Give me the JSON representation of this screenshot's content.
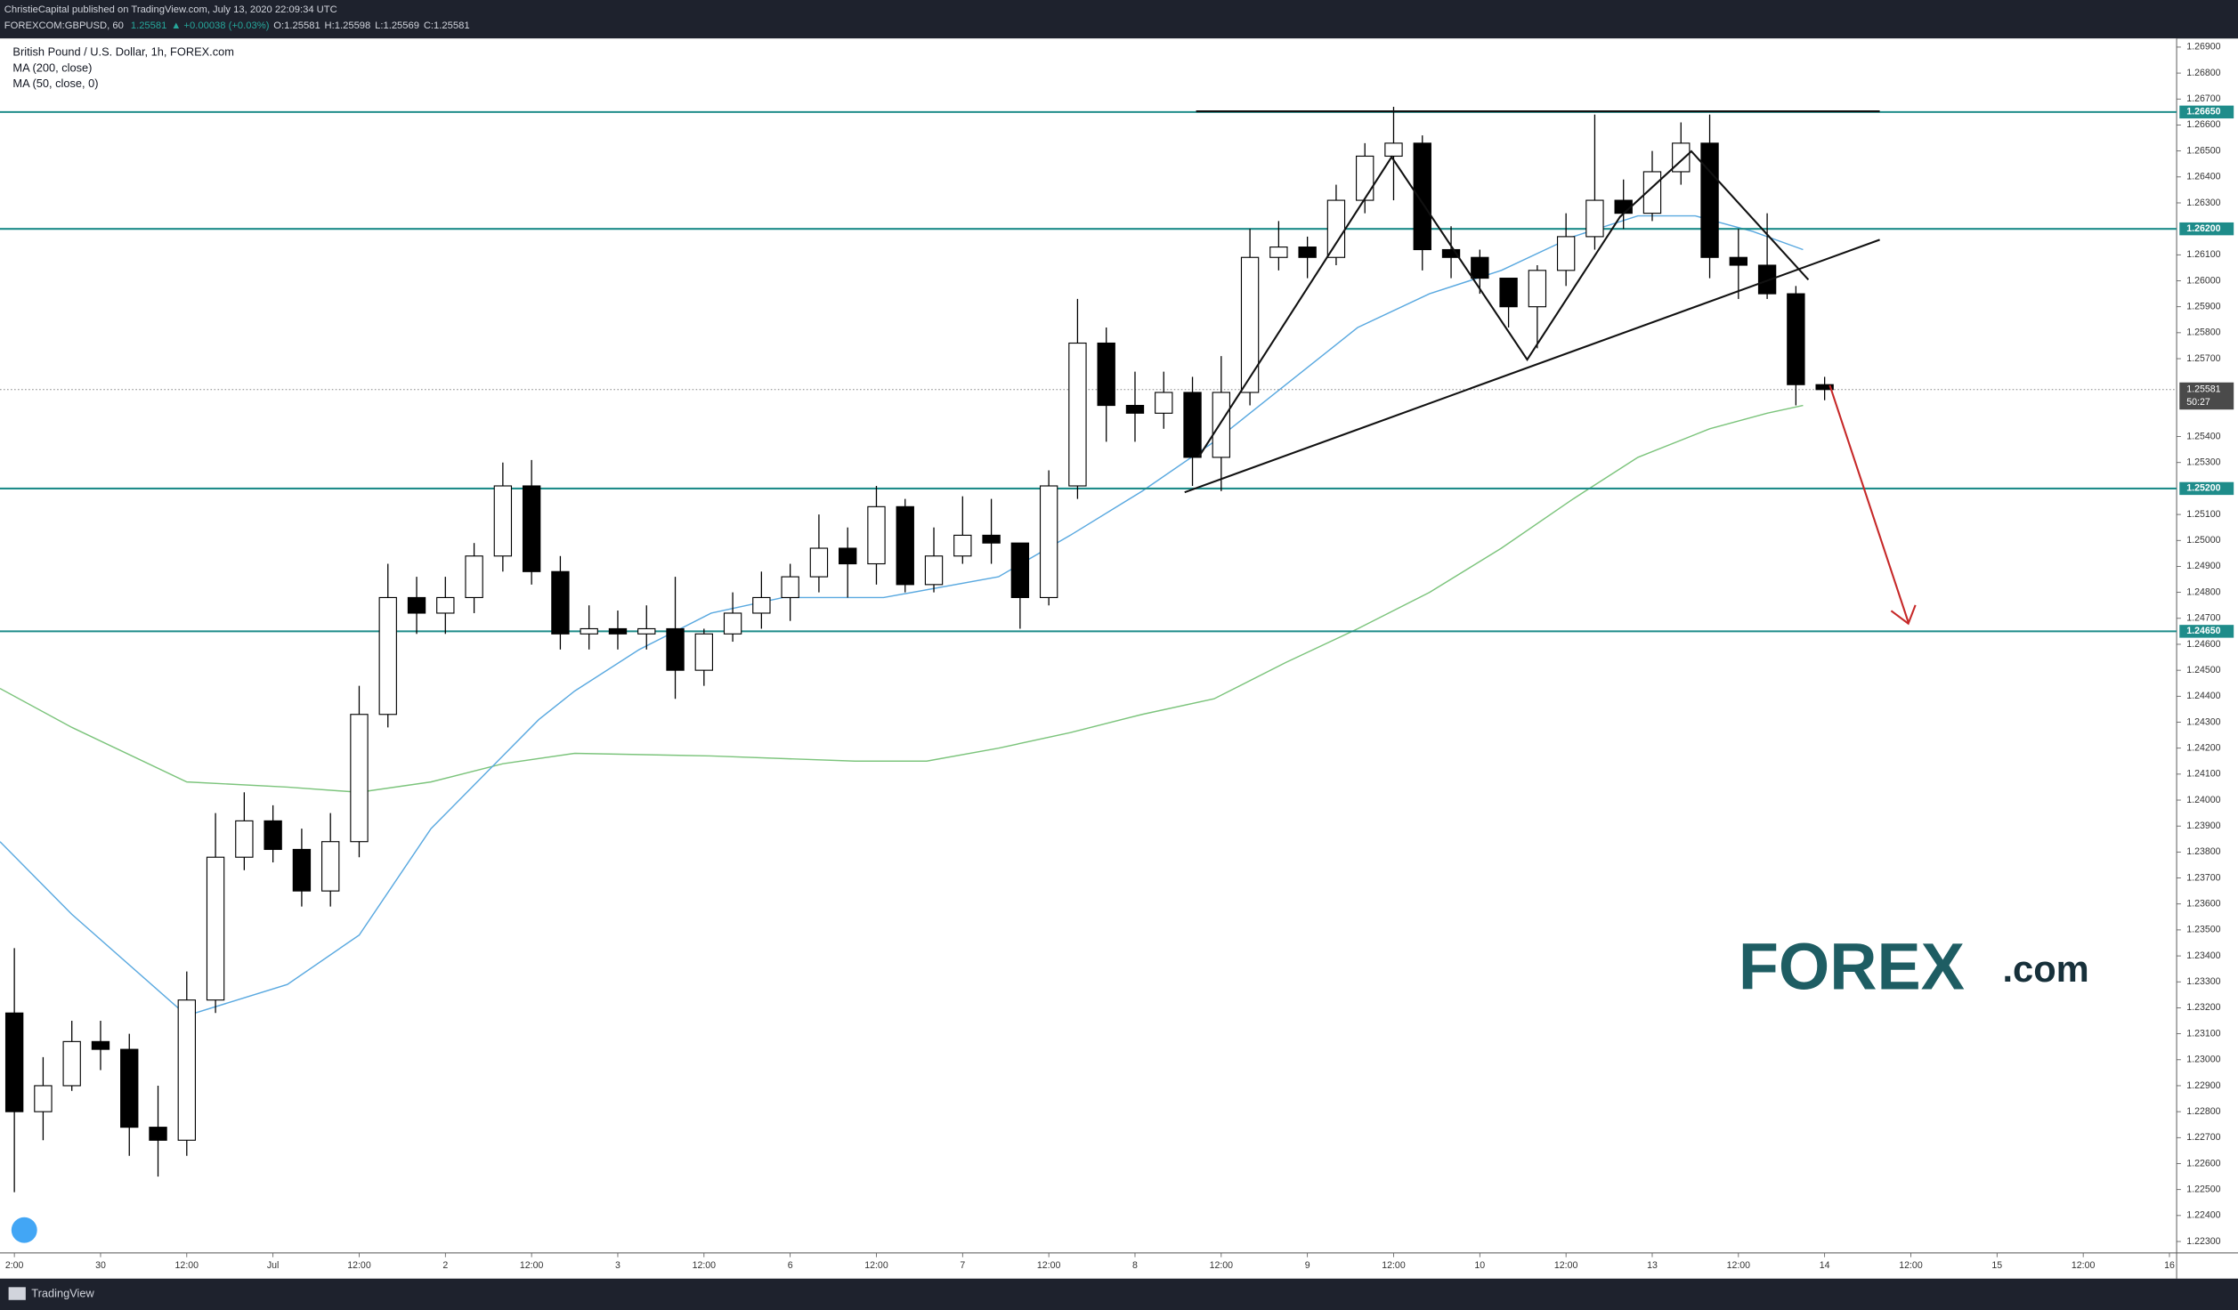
{
  "header": {
    "publisher": "ChristieCapital published on TradingView.com, July 13, 2020 22:09:34 UTC",
    "symbol": "FOREXCOM:GBPUSD, 60",
    "price": "1.25581",
    "change": "▲ +0.00038 (+0.03%)",
    "ohlc": [
      "O:1.25581",
      "H:1.25598",
      "L:1.25569",
      "C:1.25581"
    ]
  },
  "footer": {
    "brand": "TradingView"
  },
  "watermark": {
    "name": "FOREX",
    "suffix": ".com"
  },
  "chart_data": {
    "type": "candlestick",
    "title": "British Pound / U.S. Dollar, 1h, FOREX.com",
    "xlim": [
      0,
      303
    ],
    "ylim": [
      1.22256,
      1.26933
    ],
    "xticks": [
      {
        "value": 2,
        "label": "2:00"
      },
      {
        "value": 14,
        "label": "30"
      },
      {
        "value": 26,
        "label": "12:00"
      },
      {
        "value": 38,
        "label": "Jul"
      },
      {
        "value": 50,
        "label": "12:00"
      },
      {
        "value": 62,
        "label": "2"
      },
      {
        "value": 74,
        "label": "12:00"
      },
      {
        "value": 86,
        "label": "3"
      },
      {
        "value": 98,
        "label": "12:00"
      },
      {
        "value": 110,
        "label": "6"
      },
      {
        "value": 122,
        "label": "12:00"
      },
      {
        "value": 134,
        "label": "7"
      },
      {
        "value": 146,
        "label": "12:00"
      },
      {
        "value": 158,
        "label": "8"
      },
      {
        "value": 170,
        "label": "12:00"
      },
      {
        "value": 182,
        "label": "9"
      },
      {
        "value": 194,
        "label": "12:00"
      },
      {
        "value": 206,
        "label": "10"
      },
      {
        "value": 218,
        "label": "12:00"
      },
      {
        "value": 230,
        "label": "13"
      },
      {
        "value": 242,
        "label": "12:00"
      },
      {
        "value": 254,
        "label": "14"
      },
      {
        "value": 266,
        "label": "12:00"
      },
      {
        "value": 278,
        "label": "15"
      },
      {
        "value": 290,
        "label": "12:00"
      },
      {
        "value": 302,
        "label": "16"
      }
    ],
    "yticks": [
      {
        "value": 1.223,
        "label": "1.22300"
      },
      {
        "value": 1.224,
        "label": "1.22400"
      },
      {
        "value": 1.225,
        "label": "1.22500"
      },
      {
        "value": 1.226,
        "label": "1.22600"
      },
      {
        "value": 1.227,
        "label": "1.22700"
      },
      {
        "value": 1.228,
        "label": "1.22800"
      },
      {
        "value": 1.229,
        "label": "1.22900"
      },
      {
        "value": 1.23,
        "label": "1.23000"
      },
      {
        "value": 1.231,
        "label": "1.23100"
      },
      {
        "value": 1.232,
        "label": "1.23200"
      },
      {
        "value": 1.233,
        "label": "1.23300"
      },
      {
        "value": 1.234,
        "label": "1.23400"
      },
      {
        "value": 1.235,
        "label": "1.23500"
      },
      {
        "value": 1.236,
        "label": "1.23600"
      },
      {
        "value": 1.237,
        "label": "1.23700"
      },
      {
        "value": 1.238,
        "label": "1.23800"
      },
      {
        "value": 1.239,
        "label": "1.23900"
      },
      {
        "value": 1.24,
        "label": "1.24000"
      },
      {
        "value": 1.241,
        "label": "1.24100"
      },
      {
        "value": 1.242,
        "label": "1.24200"
      },
      {
        "value": 1.243,
        "label": "1.24300"
      },
      {
        "value": 1.244,
        "label": "1.24400"
      },
      {
        "value": 1.245,
        "label": "1.24500"
      },
      {
        "value": 1.246,
        "label": "1.24600"
      },
      {
        "value": 1.247,
        "label": "1.24700"
      },
      {
        "value": 1.248,
        "label": "1.24800"
      },
      {
        "value": 1.249,
        "label": "1.24900"
      },
      {
        "value": 1.25,
        "label": "1.25000"
      },
      {
        "value": 1.251,
        "label": "1.25100"
      },
      {
        "value": 1.253,
        "label": "1.25300"
      },
      {
        "value": 1.254,
        "label": "1.25400"
      },
      {
        "value": 1.257,
        "label": "1.25700"
      },
      {
        "value": 1.258,
        "label": "1.25800"
      },
      {
        "value": 1.259,
        "label": "1.25900"
      },
      {
        "value": 1.26,
        "label": "1.26000"
      },
      {
        "value": 1.261,
        "label": "1.26100"
      },
      {
        "value": 1.263,
        "label": "1.26300"
      },
      {
        "value": 1.264,
        "label": "1.26400"
      },
      {
        "value": 1.265,
        "label": "1.26500"
      },
      {
        "value": 1.266,
        "label": "1.26600"
      },
      {
        "value": 1.267,
        "label": "1.26700"
      },
      {
        "value": 1.268,
        "label": "1.26800"
      },
      {
        "value": 1.269,
        "label": "1.26900"
      }
    ],
    "candles": {
      "up_color": "#ffffff",
      "down_color": "#000000",
      "x": [
        2,
        6,
        10,
        14,
        18,
        22,
        26,
        30,
        34,
        38,
        42,
        46,
        50,
        54,
        58,
        62,
        66,
        70,
        74,
        78,
        82,
        86,
        90,
        94,
        98,
        102,
        106,
        110,
        114,
        118,
        122,
        126,
        130,
        134,
        138,
        142,
        146,
        150,
        154,
        158,
        162,
        166,
        170,
        174,
        178,
        182,
        186,
        190,
        194,
        198,
        202,
        206,
        210,
        214,
        218,
        222,
        226,
        230,
        234,
        238,
        242,
        246,
        250,
        254
      ],
      "open": [
        1.2318,
        1.228,
        1.229,
        1.2307,
        1.2304,
        1.2274,
        1.2269,
        1.2323,
        1.2378,
        1.2392,
        1.2381,
        1.2365,
        1.2384,
        1.2433,
        1.2478,
        1.2472,
        1.2478,
        1.2494,
        1.2521,
        1.2488,
        1.2464,
        1.2466,
        1.2464,
        1.2466,
        1.245,
        1.2464,
        1.2472,
        1.2478,
        1.2486,
        1.2497,
        1.2491,
        1.2513,
        1.2483,
        1.2494,
        1.2502,
        1.2499,
        1.2478,
        1.2521,
        1.2576,
        1.2552,
        1.2549,
        1.2557,
        1.2532,
        1.2557,
        1.2609,
        1.2613,
        1.2609,
        1.2631,
        1.2648,
        1.2653,
        1.2612,
        1.2609,
        1.2601,
        1.259,
        1.2604,
        1.2617,
        1.2631,
        1.2626,
        1.2642,
        1.2653,
        1.2609,
        1.2606,
        1.2595,
        1.256
      ],
      "high": [
        1.2343,
        1.2301,
        1.2315,
        1.2315,
        1.231,
        1.229,
        1.2334,
        1.2395,
        1.2403,
        1.2398,
        1.2389,
        1.2395,
        1.2444,
        1.2491,
        1.2486,
        1.2486,
        1.2499,
        1.253,
        1.2531,
        1.2494,
        1.2475,
        1.2473,
        1.2475,
        1.2486,
        1.2466,
        1.248,
        1.2488,
        1.2491,
        1.251,
        1.2505,
        1.2521,
        1.2516,
        1.2505,
        1.2517,
        1.2516,
        1.2499,
        1.2527,
        1.2593,
        1.2582,
        1.2565,
        1.2565,
        1.2563,
        1.2571,
        1.262,
        1.2623,
        1.2617,
        1.2637,
        1.2653,
        1.2667,
        1.2656,
        1.2621,
        1.2612,
        1.2601,
        1.2606,
        1.2626,
        1.2664,
        1.2639,
        1.265,
        1.2661,
        1.2664,
        1.262,
        1.2626,
        1.2598,
        1.2563
      ],
      "low": [
        1.2249,
        1.2269,
        1.2288,
        1.2296,
        1.2263,
        1.2255,
        1.2263,
        1.2318,
        1.2373,
        1.2376,
        1.2359,
        1.2359,
        1.2378,
        1.2428,
        1.2464,
        1.2464,
        1.2472,
        1.2488,
        1.2483,
        1.2458,
        1.2458,
        1.2458,
        1.2458,
        1.2439,
        1.2444,
        1.2461,
        1.2466,
        1.2469,
        1.248,
        1.2478,
        1.2483,
        1.248,
        1.248,
        1.2491,
        1.2491,
        1.2466,
        1.2475,
        1.2516,
        1.2538,
        1.2538,
        1.2543,
        1.2521,
        1.2519,
        1.2552,
        1.2604,
        1.2601,
        1.2606,
        1.2626,
        1.2631,
        1.2604,
        1.2601,
        1.2595,
        1.2582,
        1.2574,
        1.2598,
        1.2612,
        1.262,
        1.2623,
        1.2637,
        1.2601,
        1.2593,
        1.2593,
        1.2552,
        1.2554
      ],
      "close": [
        1.228,
        1.229,
        1.2307,
        1.2304,
        1.2274,
        1.2269,
        1.2323,
        1.2378,
        1.2392,
        1.2381,
        1.2365,
        1.2384,
        1.2433,
        1.2478,
        1.2472,
        1.2478,
        1.2494,
        1.2521,
        1.2488,
        1.2464,
        1.2466,
        1.2464,
        1.2466,
        1.245,
        1.2464,
        1.2472,
        1.2478,
        1.2486,
        1.2497,
        1.2491,
        1.2513,
        1.2483,
        1.2494,
        1.2502,
        1.2499,
        1.2478,
        1.2521,
        1.2576,
        1.2552,
        1.2549,
        1.2557,
        1.2532,
        1.2557,
        1.2609,
        1.2613,
        1.2609,
        1.2631,
        1.2648,
        1.2653,
        1.2612,
        1.2609,
        1.2601,
        1.259,
        1.2604,
        1.2617,
        1.2631,
        1.2626,
        1.2642,
        1.2653,
        1.2609,
        1.2606,
        1.2595,
        1.256,
        1.25581
      ]
    },
    "series": [
      {
        "name": "MA (200, close)",
        "color": "#7cc47c",
        "x": [
          0,
          10,
          26,
          40,
          50,
          60,
          70,
          80,
          99,
          119,
          129,
          139,
          149,
          159,
          169,
          179,
          189,
          199,
          209,
          219,
          228,
          238,
          246,
          251
        ],
        "values": [
          1.2443,
          1.2428,
          1.2407,
          1.2405,
          1.2403,
          1.2407,
          1.2414,
          1.2418,
          1.2417,
          1.2415,
          1.2415,
          1.242,
          1.2426,
          1.2433,
          1.2439,
          1.2453,
          1.2466,
          1.248,
          1.2497,
          1.2516,
          1.2532,
          1.2543,
          1.2549,
          1.2552
        ]
      },
      {
        "name": "MA (50, close, 0)",
        "color": "#5aa9e0",
        "x": [
          0,
          10,
          26,
          40,
          50,
          60,
          70,
          75,
          80,
          89,
          99,
          109,
          123,
          139,
          149,
          159,
          169,
          179,
          189,
          199,
          209,
          219,
          228,
          236,
          244,
          251
        ],
        "values": [
          1.2384,
          1.2356,
          1.2317,
          1.2329,
          1.2348,
          1.2389,
          1.2417,
          1.2431,
          1.2442,
          1.2458,
          1.2472,
          1.2478,
          1.2478,
          1.2486,
          1.2502,
          1.2519,
          1.2538,
          1.256,
          1.2582,
          1.2595,
          1.2604,
          1.2617,
          1.2625,
          1.2625,
          1.2619,
          1.2612
        ]
      }
    ],
    "levels": {
      "color": "#1e8c8a",
      "items": [
        {
          "value": 1.2665,
          "label": "1.26650"
        },
        {
          "value": 1.262,
          "label": "1.26200"
        },
        {
          "value": 1.252,
          "label": "1.25200"
        },
        {
          "value": 1.2465,
          "label": "1.24650"
        }
      ]
    },
    "last_price": {
      "value": 1.25581,
      "label": "1.25581",
      "countdown": "50:27"
    }
  }
}
